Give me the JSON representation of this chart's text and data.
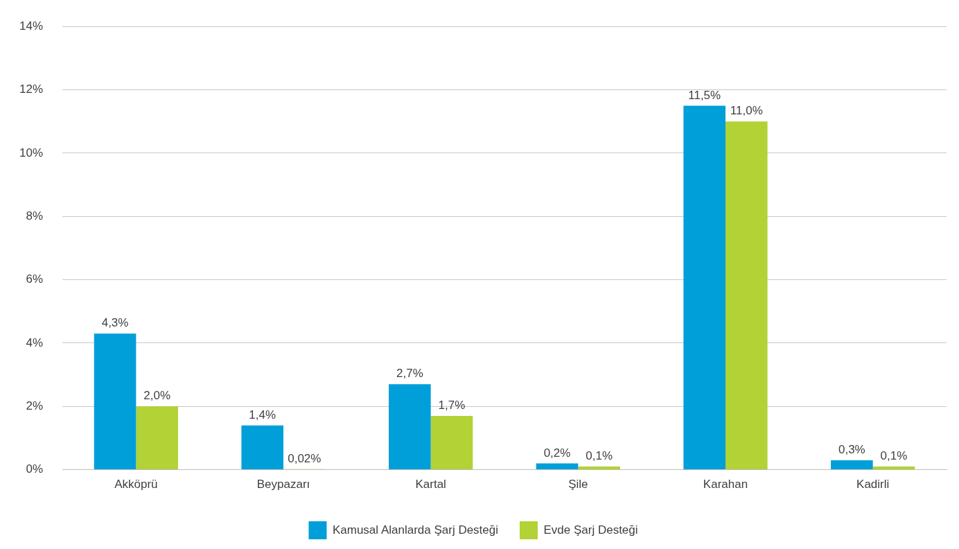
{
  "chart_data": {
    "type": "bar",
    "categories": [
      "Akköprü",
      "Beypazarı",
      "Kartal",
      "Şile",
      "Karahan",
      "Kadirli"
    ],
    "series": [
      {
        "name": "Kamusal Alanlarda Şarj Desteği",
        "color": "#009fd9",
        "values": [
          4.3,
          1.4,
          2.7,
          0.2,
          11.5,
          0.3
        ],
        "value_labels": [
          "4,3%",
          "1,4%",
          "2,7%",
          "0,2%",
          "11,5%",
          "0,3%"
        ]
      },
      {
        "name": "Evde Şarj Desteği",
        "color": "#b2d235",
        "values": [
          2.0,
          0.02,
          1.7,
          0.1,
          11.0,
          0.1
        ],
        "value_labels": [
          "2,0%",
          "0,02%",
          "1,7%",
          "0,1%",
          "11,0%",
          "0,1%"
        ]
      }
    ],
    "ylim": [
      0,
      14
    ],
    "yticks": [
      {
        "value": 0,
        "label": "0%"
      },
      {
        "value": 2,
        "label": "2%"
      },
      {
        "value": 4,
        "label": "4%"
      },
      {
        "value": 6,
        "label": "6%"
      },
      {
        "value": 8,
        "label": "8%"
      },
      {
        "value": 10,
        "label": "10%"
      },
      {
        "value": 12,
        "label": "12%"
      },
      {
        "value": 14,
        "label": "14%"
      }
    ],
    "grid": "y",
    "legend": "bottom"
  }
}
